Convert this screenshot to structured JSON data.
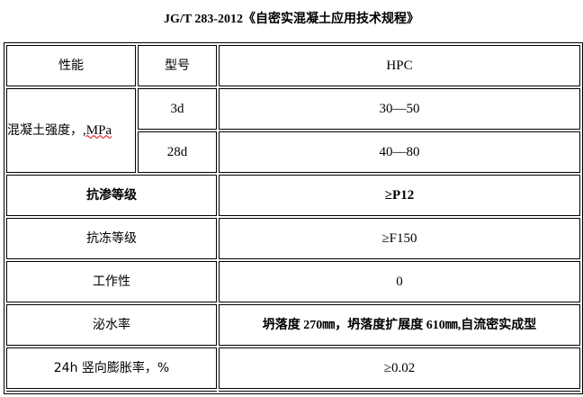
{
  "title": "JG/T 283-2012《自密实混凝土应用技术规程》",
  "header": {
    "property": "性能",
    "model": "型号",
    "value": "HPC"
  },
  "strength": {
    "label_cn": "混凝土强度，",
    "label_unit": ",MPa",
    "rows": [
      {
        "age": "3d",
        "value": "30—50"
      },
      {
        "age": "28d",
        "value": "40—80"
      }
    ]
  },
  "rows": [
    {
      "label": "抗渗等级",
      "value": "≥P12",
      "bold": true
    },
    {
      "label": "抗冻等级",
      "value": "≥F150"
    },
    {
      "label": "工作性",
      "value": "0"
    },
    {
      "label": "泌水率",
      "value": "坍落度 270㎜，坍落度扩展度 610㎜,自流密实成型",
      "bold": true
    },
    {
      "label": "24h 竖向膨胀率，%",
      "value": "≥0.02"
    }
  ]
}
